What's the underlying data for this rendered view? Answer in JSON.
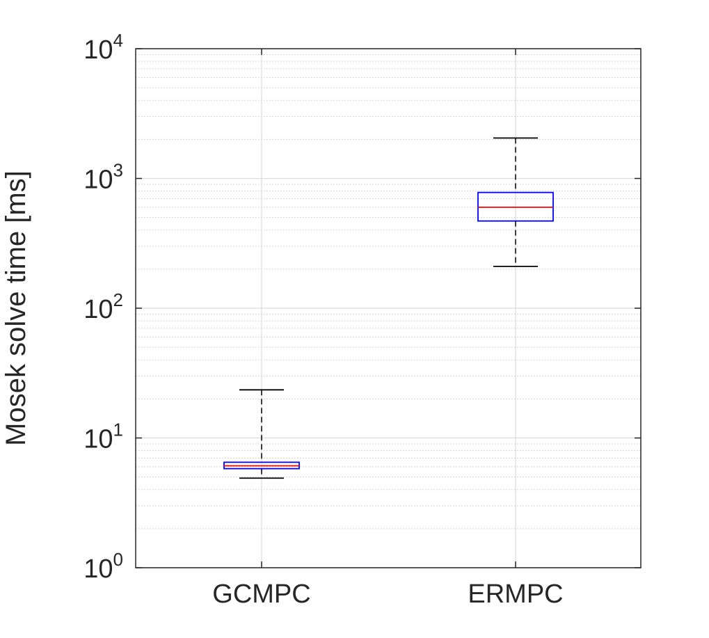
{
  "chart_data": {
    "type": "boxplot",
    "categories": [
      "GCMPC",
      "ERMPC"
    ],
    "ylabel": "Mosek solve time [ms]",
    "xlabel": "",
    "yscale": "log",
    "ylim": [
      1,
      10000
    ],
    "yticks": [
      {
        "base": "10",
        "exp": "0",
        "value": 1
      },
      {
        "base": "10",
        "exp": "1",
        "value": 10
      },
      {
        "base": "10",
        "exp": "2",
        "value": 100
      },
      {
        "base": "10",
        "exp": "3",
        "value": 1000
      },
      {
        "base": "10",
        "exp": "4",
        "value": 10000
      }
    ],
    "grid": true,
    "boxes": [
      {
        "category": "GCMPC",
        "whisker_low": 4.9,
        "q1": 5.8,
        "median": 6.1,
        "q3": 6.5,
        "whisker_high": 23.5
      },
      {
        "category": "ERMPC",
        "whisker_low": 210,
        "q1": 470,
        "median": 600,
        "q3": 780,
        "whisker_high": 2050
      }
    ],
    "colors": {
      "box": "#0000ff",
      "median": "#ff0000",
      "whisker": "#000000",
      "axis": "#262626",
      "grid_major": "#dcdcdc",
      "grid_minor": "#c8c8c8"
    }
  }
}
